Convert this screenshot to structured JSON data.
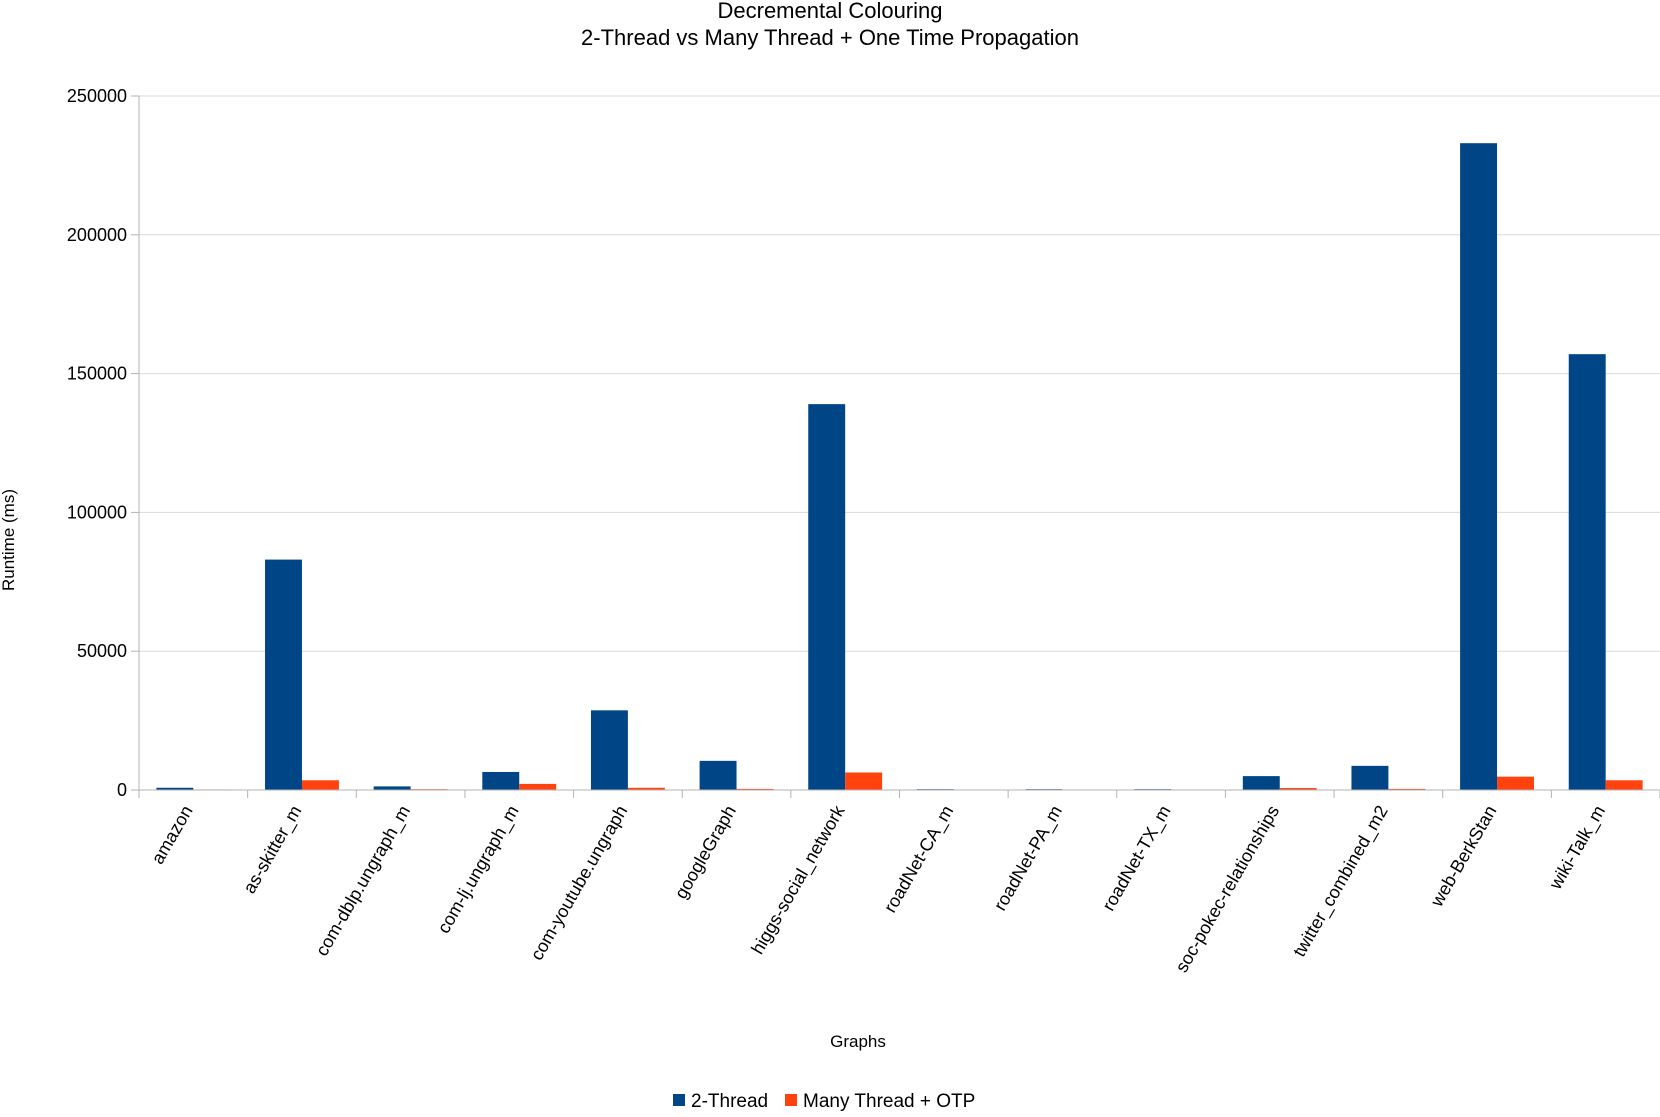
{
  "chart_data": {
    "type": "bar",
    "title": "Decremental Colouring",
    "subtitle": "2-Thread vs Many Thread + One Time Propagation",
    "xlabel": "Graphs",
    "ylabel": "Runtime (ms)",
    "ylim": [
      0,
      250000
    ],
    "yticks": [
      0,
      50000,
      100000,
      150000,
      200000,
      250000
    ],
    "grid": true,
    "legend_position": "bottom",
    "categories": [
      "amazon",
      "as-skitter_m",
      "com-dblp.ungraph_m",
      "com-lj.ungraph_m",
      "com-youtube.ungraph",
      "googleGraph",
      "higgs-social_network",
      "roadNet-CA_m",
      "roadNet-PA_m",
      "roadNet-TX_m",
      "soc-pokec-relationships",
      "twitter_combined_m2",
      "web-BerkStan",
      "wiki-Talk_m"
    ],
    "series": [
      {
        "name": "2-Thread",
        "color": "#004586",
        "values": [
          800,
          83000,
          1300,
          6500,
          28700,
          10500,
          139000,
          300,
          300,
          300,
          5000,
          8700,
          233000,
          157000
        ]
      },
      {
        "name": "Many Thread + OTP",
        "color": "#ff420e",
        "values": [
          200,
          3500,
          300,
          2200,
          800,
          400,
          6300,
          100,
          100,
          100,
          700,
          400,
          4800,
          3500
        ]
      }
    ]
  }
}
